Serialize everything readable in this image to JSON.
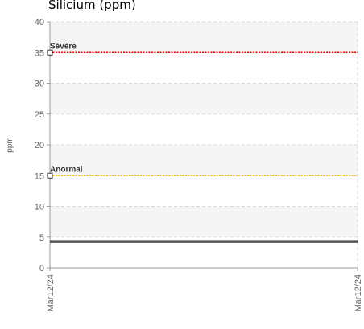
{
  "chart_data": {
    "type": "line",
    "title": "Silicium (ppm)",
    "ylabel": "ppm",
    "xlabel": "",
    "ylim": [
      0,
      40
    ],
    "yticks": [
      0,
      5,
      10,
      15,
      20,
      25,
      30,
      35,
      40
    ],
    "x": [
      "Mar12/24",
      "Mar12/24"
    ],
    "series": [
      {
        "values": [
          4.3,
          4.3
        ],
        "color": "#555555"
      }
    ],
    "thresholds": [
      {
        "label": "Sévère",
        "value": 35,
        "color": "#ff0000"
      },
      {
        "label": "Anormal",
        "value": 15,
        "color": "#f5c400"
      }
    ],
    "grid": true,
    "legend": "none"
  }
}
